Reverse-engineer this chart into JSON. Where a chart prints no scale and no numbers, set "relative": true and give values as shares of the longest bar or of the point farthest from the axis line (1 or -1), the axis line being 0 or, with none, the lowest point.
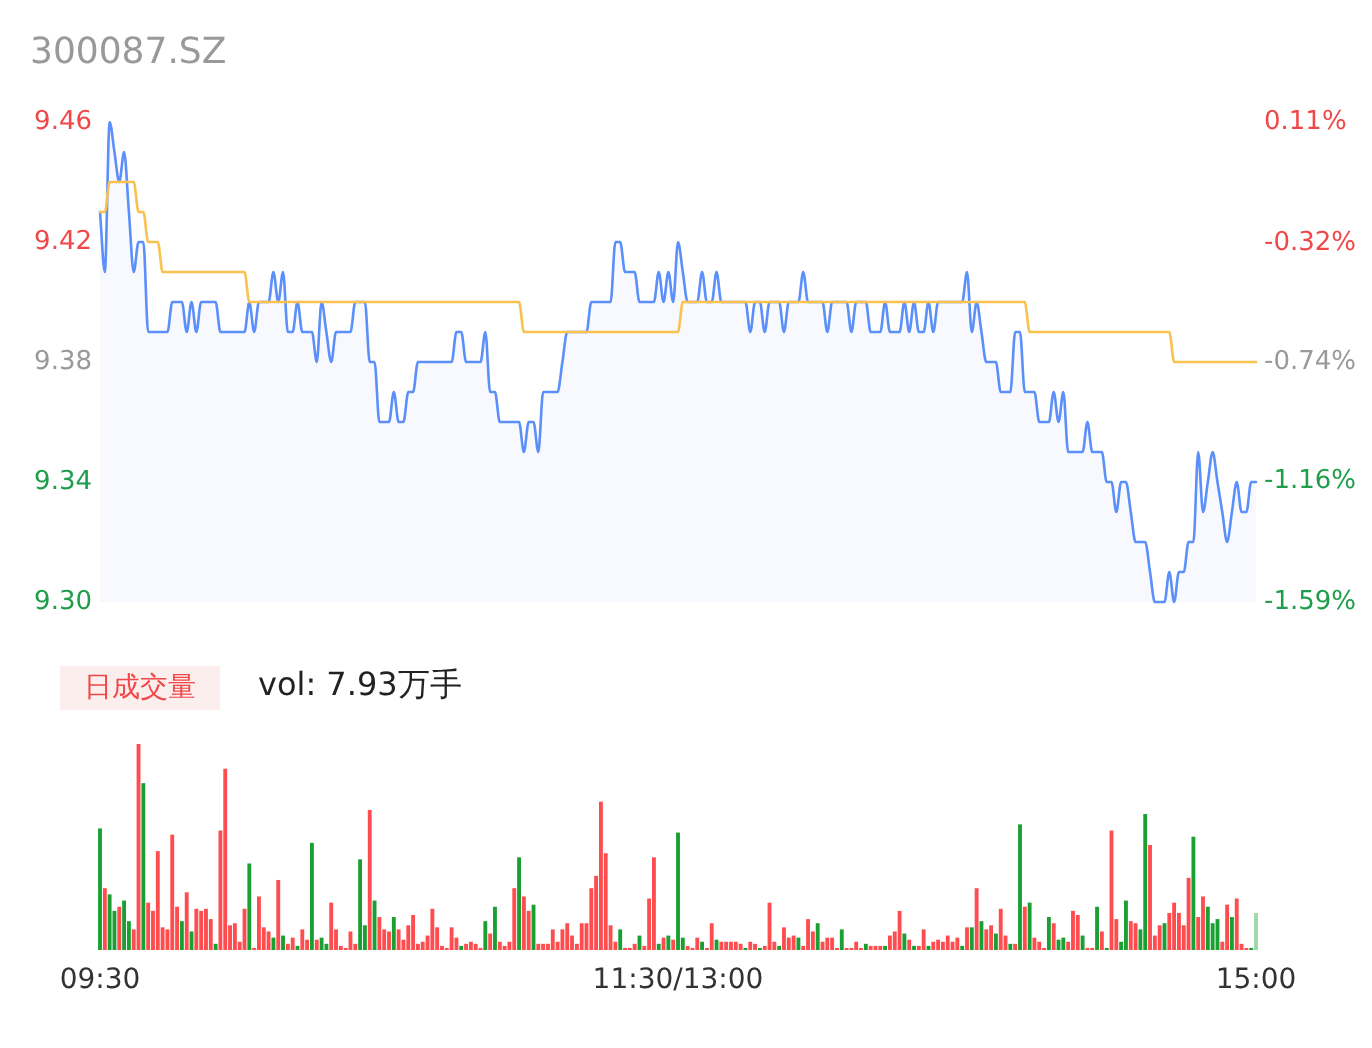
{
  "chart_data": [
    {
      "type": "area",
      "title": "300087.SZ",
      "ylim": [
        9.3,
        9.46
      ],
      "yticks": [
        {
          "value": 9.3,
          "label": "9.30"
        },
        9.34,
        9.38,
        9.42,
        9.46
      ],
      "y2lim": [
        -1.59,
        0.11
      ],
      "y2ticks": [
        {
          "value": -1.59,
          "label": "-1.59%"
        },
        {
          "value": -1.16,
          "label": "-1.16%"
        },
        {
          "value": -0.74,
          "label": "-0.74%"
        },
        {
          "value": -0.32,
          "label": "-0.32%"
        },
        {
          "value": 0.11,
          "label": "0.11%"
        }
      ],
      "tick_labels": "y",
      "categories": [
        null,
        null,
        null,
        null,
        null,
        null,
        null,
        null,
        null,
        null,
        null,
        null,
        null,
        null,
        null,
        null,
        null,
        null,
        null,
        null,
        null,
        null,
        null,
        null,
        null,
        null,
        null,
        null,
        null,
        null,
        null,
        null,
        null,
        null,
        null,
        null,
        null,
        null,
        null,
        null,
        null,
        null,
        null,
        null,
        null,
        null,
        null,
        null,
        null,
        null,
        null,
        null,
        null,
        null,
        null,
        null,
        null,
        null,
        null,
        null,
        null,
        null,
        null,
        null,
        null,
        null,
        null,
        null,
        null,
        null,
        null,
        null,
        null,
        null,
        null,
        null,
        null,
        null,
        null,
        null,
        null,
        null,
        null,
        null,
        null,
        null,
        null,
        null,
        null,
        null,
        null,
        null,
        null,
        null,
        null,
        null,
        null,
        null,
        null,
        null,
        null,
        null,
        null,
        null,
        null,
        null,
        null,
        null,
        null,
        null,
        null,
        null,
        null,
        null,
        null,
        null,
        null,
        null,
        null,
        null,
        null,
        null,
        null,
        null,
        null,
        null,
        null,
        null,
        null,
        null,
        null,
        null,
        null,
        null,
        null,
        null,
        null,
        null,
        null,
        null,
        null,
        null,
        null,
        null,
        null,
        null,
        null,
        null,
        null,
        null,
        null,
        null,
        null,
        null,
        null,
        null,
        null,
        null,
        null,
        null,
        null,
        null,
        null,
        null,
        null,
        null,
        null,
        null,
        null,
        null,
        null,
        null,
        null,
        null,
        null,
        null,
        null,
        null,
        null,
        null,
        null,
        null,
        null,
        null,
        null,
        null,
        null,
        null,
        null,
        null,
        null,
        null,
        null,
        null,
        null,
        null,
        null,
        null,
        null,
        null,
        null,
        null,
        null,
        null,
        null,
        null,
        null,
        null,
        null,
        null,
        null,
        null,
        null,
        null,
        null,
        null,
        null,
        null,
        null,
        null,
        null,
        null,
        null,
        null,
        null,
        null,
        null,
        null,
        null,
        null,
        null,
        null,
        null,
        null,
        null,
        null,
        null,
        null,
        null,
        null,
        null
      ],
      "series": [
        {
          "color": "#5b8ff9",
          "values": [
            9.43,
            9.41,
            9.46,
            9.45,
            9.44,
            9.45,
            9.43,
            9.41,
            9.42,
            9.42,
            9.39,
            9.39,
            9.39,
            9.39,
            9.39,
            9.4,
            9.4,
            9.4,
            9.39,
            9.4,
            9.39,
            9.4,
            9.4,
            9.4,
            9.4,
            9.39,
            9.39,
            9.39,
            9.39,
            9.39,
            9.39,
            9.4,
            9.39,
            9.4,
            9.4,
            9.4,
            9.41,
            9.4,
            9.41,
            9.39,
            9.39,
            9.4,
            9.39,
            9.39,
            9.39,
            9.38,
            9.4,
            9.39,
            9.38,
            9.39,
            9.39,
            9.39,
            9.39,
            9.4,
            9.4,
            9.4,
            9.38,
            9.38,
            9.36,
            9.36,
            9.36,
            9.37,
            9.36,
            9.36,
            9.37,
            9.37,
            9.38,
            9.38,
            9.38,
            9.38,
            9.38,
            9.38,
            9.38,
            9.38,
            9.39,
            9.39,
            9.38,
            9.38,
            9.38,
            9.38,
            9.39,
            9.37,
            9.37,
            9.36,
            9.36,
            9.36,
            9.36,
            9.36,
            9.35,
            9.36,
            9.36,
            9.35,
            9.37,
            9.37,
            9.37,
            9.37,
            9.38,
            9.39,
            9.39,
            9.39,
            9.39,
            9.39,
            9.4,
            9.4,
            9.4,
            9.4,
            9.4,
            9.42,
            9.42,
            9.41,
            9.41,
            9.41,
            9.4,
            9.4,
            9.4,
            9.4,
            9.41,
            9.4,
            9.41,
            9.4,
            9.42,
            9.41,
            9.4,
            9.4,
            9.4,
            9.41,
            9.4,
            9.4,
            9.41,
            9.4,
            9.4,
            9.4,
            9.4,
            9.4,
            9.4,
            9.39,
            9.4,
            9.4,
            9.39,
            9.4,
            9.4,
            9.4,
            9.39,
            9.4,
            9.4,
            9.4,
            9.41,
            9.4,
            9.4,
            9.4,
            9.4,
            9.39,
            9.4,
            9.4,
            9.4,
            9.4,
            9.39,
            9.4,
            9.4,
            9.4,
            9.39,
            9.39,
            9.39,
            9.4,
            9.39,
            9.39,
            9.39,
            9.4,
            9.39,
            9.4,
            9.39,
            9.39,
            9.4,
            9.39,
            9.4,
            9.4,
            9.4,
            9.4,
            9.4,
            9.4,
            9.41,
            9.39,
            9.4,
            9.39,
            9.38,
            9.38,
            9.38,
            9.37,
            9.37,
            9.37,
            9.39,
            9.39,
            9.37,
            9.37,
            9.37,
            9.36,
            9.36,
            9.36,
            9.37,
            9.36,
            9.37,
            9.35,
            9.35,
            9.35,
            9.35,
            9.36,
            9.35,
            9.35,
            9.35,
            9.34,
            9.34,
            9.33,
            9.34,
            9.34,
            9.33,
            9.32,
            9.32,
            9.32,
            9.31,
            9.3,
            9.3,
            9.3,
            9.31,
            9.3,
            9.31,
            9.31,
            9.32,
            9.32,
            9.35,
            9.33,
            9.34,
            9.35,
            9.34,
            9.33,
            9.32,
            9.33,
            9.34,
            9.33,
            9.33,
            9.34,
            9.34
          ]
        },
        {
          "type": "line",
          "color": "#f9c24f",
          "values": [
            9.43,
            9.43,
            9.44,
            9.44,
            9.44,
            9.44,
            9.44,
            9.44,
            9.43,
            9.43,
            9.42,
            9.42,
            9.42,
            9.41,
            9.41,
            9.41,
            9.41,
            9.41,
            9.41,
            9.41,
            9.41,
            9.41,
            9.41,
            9.41,
            9.41,
            9.41,
            9.41,
            9.41,
            9.41,
            9.41,
            9.41,
            9.4,
            9.4,
            9.4,
            9.4,
            9.4,
            9.4,
            9.4,
            9.4,
            9.4,
            9.4,
            9.4,
            9.4,
            9.4,
            9.4,
            9.4,
            9.4,
            9.4,
            9.4,
            9.4,
            9.4,
            9.4,
            9.4,
            9.4,
            9.4,
            9.4,
            9.4,
            9.4,
            9.4,
            9.4,
            9.4,
            9.4,
            9.4,
            9.4,
            9.4,
            9.4,
            9.4,
            9.4,
            9.4,
            9.4,
            9.4,
            9.4,
            9.4,
            9.4,
            9.4,
            9.4,
            9.4,
            9.4,
            9.4,
            9.4,
            9.4,
            9.4,
            9.4,
            9.4,
            9.4,
            9.4,
            9.4,
            9.4,
            9.39,
            9.39,
            9.39,
            9.39,
            9.39,
            9.39,
            9.39,
            9.39,
            9.39,
            9.39,
            9.39,
            9.39,
            9.39,
            9.39,
            9.39,
            9.39,
            9.39,
            9.39,
            9.39,
            9.39,
            9.39,
            9.39,
            9.39,
            9.39,
            9.39,
            9.39,
            9.39,
            9.39,
            9.39,
            9.39,
            9.39,
            9.39,
            9.39,
            9.4,
            9.4,
            9.4,
            9.4,
            9.4,
            9.4,
            9.4,
            9.4,
            9.4,
            9.4,
            9.4,
            9.4,
            9.4,
            9.4,
            9.4,
            9.4,
            9.4,
            9.4,
            9.4,
            9.4,
            9.4,
            9.4,
            9.4,
            9.4,
            9.4,
            9.4,
            9.4,
            9.4,
            9.4,
            9.4,
            9.4,
            9.4,
            9.4,
            9.4,
            9.4,
            9.4,
            9.4,
            9.4,
            9.4,
            9.4,
            9.4,
            9.4,
            9.4,
            9.4,
            9.4,
            9.4,
            9.4,
            9.4,
            9.4,
            9.4,
            9.4,
            9.4,
            9.4,
            9.4,
            9.4,
            9.4,
            9.4,
            9.4,
            9.4,
            9.4,
            9.4,
            9.4,
            9.4,
            9.4,
            9.4,
            9.4,
            9.4,
            9.4,
            9.4,
            9.4,
            9.4,
            9.4,
            9.39,
            9.39,
            9.39,
            9.39,
            9.39,
            9.39,
            9.39,
            9.39,
            9.39,
            9.39,
            9.39,
            9.39,
            9.39,
            9.39,
            9.39,
            9.39,
            9.39,
            9.39,
            9.39,
            9.39,
            9.39,
            9.39,
            9.39,
            9.39,
            9.39,
            9.39,
            9.39,
            9.39,
            9.39,
            9.39,
            9.38,
            9.38,
            9.38,
            9.38,
            9.38,
            9.38,
            9.38,
            9.38,
            9.38,
            9.38,
            9.38,
            9.38,
            9.38,
            9.38,
            9.38,
            9.38,
            9.38,
            9.38
          ]
        }
      ]
    },
    {
      "type": "bar",
      "title": "日成交量",
      "annotations": [
        "vol: 7.93万手"
      ],
      "relative": true,
      "tick_labels": "x",
      "categories": [
        "09:30",
        null,
        null,
        null,
        null,
        null,
        null,
        null,
        null,
        null,
        null,
        null,
        null,
        null,
        null,
        null,
        null,
        null,
        null,
        null,
        null,
        null,
        null,
        null,
        null,
        null,
        null,
        null,
        null,
        null,
        null,
        null,
        null,
        null,
        null,
        null,
        null,
        null,
        null,
        null,
        null,
        null,
        null,
        null,
        null,
        null,
        null,
        null,
        null,
        null,
        null,
        null,
        null,
        null,
        null,
        null,
        null,
        null,
        null,
        null,
        null,
        null,
        null,
        null,
        null,
        null,
        null,
        null,
        null,
        null,
        null,
        null,
        null,
        null,
        null,
        null,
        null,
        null,
        null,
        null,
        null,
        null,
        null,
        null,
        null,
        null,
        null,
        null,
        null,
        null,
        null,
        null,
        null,
        null,
        null,
        null,
        null,
        null,
        null,
        null,
        null,
        null,
        null,
        null,
        null,
        null,
        null,
        null,
        null,
        null,
        null,
        null,
        null,
        null,
        null,
        null,
        null,
        null,
        null,
        null,
        "11:30/13:00",
        null,
        null,
        null,
        null,
        null,
        null,
        null,
        null,
        null,
        null,
        null,
        null,
        null,
        null,
        null,
        null,
        null,
        null,
        null,
        null,
        null,
        null,
        null,
        null,
        null,
        null,
        null,
        null,
        null,
        null,
        null,
        null,
        null,
        null,
        null,
        null,
        null,
        null,
        null,
        null,
        null,
        null,
        null,
        null,
        null,
        null,
        null,
        null,
        null,
        null,
        null,
        null,
        null,
        null,
        null,
        null,
        null,
        null,
        null,
        null,
        null,
        null,
        null,
        null,
        null,
        null,
        null,
        null,
        null,
        null,
        null,
        null,
        null,
        null,
        null,
        null,
        null,
        null,
        null,
        null,
        null,
        null,
        null,
        null,
        null,
        null,
        null,
        null,
        null,
        null,
        null,
        null,
        null,
        null,
        null,
        null,
        null,
        null,
        null,
        null,
        null,
        null,
        null,
        null,
        null,
        null,
        null,
        null,
        null,
        null,
        null,
        null,
        null,
        null,
        null,
        null,
        null,
        null,
        null,
        "15:00"
      ],
      "values": [
        0.59,
        0.3,
        0.27,
        0.19,
        0.21,
        0.24,
        0.14,
        0.1,
        1,
        0.81,
        0.23,
        0.19,
        0.48,
        0.11,
        0.1,
        0.56,
        0.21,
        0.14,
        0.28,
        0.09,
        0.2,
        0.19,
        0.2,
        0.15,
        0.03,
        0.58,
        0.88,
        0.12,
        0.13,
        0.04,
        0.2,
        0.42,
        0.01,
        0.26,
        0.11,
        0.09,
        0.06,
        0.34,
        0.07,
        0.03,
        0.06,
        0.02,
        0.1,
        0.05,
        0.52,
        0.05,
        0.06,
        0.03,
        0.23,
        0.1,
        0.02,
        0.01,
        0.09,
        0.03,
        0.44,
        0.12,
        0.68,
        0.24,
        0.16,
        0.1,
        0.09,
        0.16,
        0.1,
        0.05,
        0.12,
        0.17,
        0.03,
        0.04,
        0.07,
        0.2,
        0.11,
        0.02,
        0.01,
        0.11,
        0.06,
        0.02,
        0.03,
        0.04,
        0.03,
        0.01,
        0.14,
        0.08,
        0.21,
        0.04,
        0.02,
        0.04,
        0.3,
        0.45,
        0.26,
        0.19,
        0.22,
        0.03,
        0.03,
        0.03,
        0.1,
        0.04,
        0.1,
        0.13,
        0.07,
        0.03,
        0.13,
        0.13,
        0.3,
        0.36,
        0.72,
        0.47,
        0.12,
        0.04,
        0.1,
        0.01,
        0.01,
        0.03,
        0.07,
        0.02,
        0.25,
        0.45,
        0.03,
        0.06,
        0.07,
        0.05,
        0.57,
        0.06,
        0.02,
        0.01,
        0.06,
        0.04,
        0.01,
        0.13,
        0.05,
        0.04,
        0.04,
        0.04,
        0.04,
        0.03,
        0.01,
        0.04,
        0.03,
        0.01,
        0.02,
        0.23,
        0.04,
        0.02,
        0.11,
        0.06,
        0.07,
        0.06,
        0.02,
        0.15,
        0.09,
        0.13,
        0.04,
        0.06,
        0.06,
        0.01,
        0.1,
        0.01,
        0.01,
        0.04,
        0.01,
        0.03,
        0.02,
        0.02,
        0.02,
        0.02,
        0.07,
        0.09,
        0.19,
        0.08,
        0.05,
        0.02,
        0.02,
        0.1,
        0.02,
        0.04,
        0.05,
        0.04,
        0.07,
        0.04,
        0.06,
        0.02,
        0.11,
        0.11,
        0.3,
        0.14,
        0.1,
        0.12,
        0.08,
        0.2,
        0.07,
        0.03,
        0.03,
        0.61,
        0.21,
        0.23,
        0.06,
        0.04,
        0.01,
        0.16,
        0.13,
        0.05,
        0.06,
        0.04,
        0.19,
        0.17,
        0.07,
        0.01,
        0.01,
        0.21,
        0.09,
        0.01,
        0.58,
        0.15,
        0.04,
        0.24,
        0.14,
        0.13,
        0.1,
        0.66,
        0.51,
        0.07,
        0.12,
        0.13,
        0.18,
        0.23,
        0.18,
        0.12,
        0.35,
        0.55,
        0.16,
        0.26,
        0.21,
        0.13,
        0.15,
        0.04,
        0.22,
        0.16,
        0.25,
        0.03,
        0.01,
        0.01,
        0.18
      ],
      "colors": [
        "#1aa032",
        "#ff4d4f",
        "#1aa032",
        "#1aa032",
        "#ff4d4f",
        "#1aa032",
        "#1aa032",
        "#ff4d4f",
        "#ff4d4f",
        "#1aa032",
        "#ff4d4f",
        "#ff4d4f",
        "#ff4d4f",
        "#ff4d4f",
        "#ff4d4f",
        "#ff4d4f",
        "#ff4d4f",
        "#1aa032",
        "#ff4d4f",
        "#1aa032",
        "#ff4d4f",
        "#ff4d4f",
        "#ff4d4f",
        "#ff4d4f",
        "#1aa032",
        "#ff4d4f",
        "#ff4d4f",
        "#ff4d4f",
        "#ff4d4f",
        "#ff4d4f",
        "#ff4d4f",
        "#1aa032",
        "#ff4d4f",
        "#ff4d4f",
        "#ff4d4f",
        "#ff4d4f",
        "#1aa032",
        "#ff4d4f",
        "#1aa032",
        "#ff4d4f",
        "#ff4d4f",
        "#1aa032",
        "#ff4d4f",
        "#ff4d4f",
        "#1aa032",
        "#ff4d4f",
        "#1aa032",
        "#1aa032",
        "#ff4d4f",
        "#ff4d4f",
        "#ff4d4f",
        "#ff4d4f",
        "#ff4d4f",
        "#ff4d4f",
        "#1aa032",
        "#1aa032",
        "#ff4d4f",
        "#1aa032",
        "#ff4d4f",
        "#ff4d4f",
        "#ff4d4f",
        "#1aa032",
        "#ff4d4f",
        "#ff4d4f",
        "#ff4d4f",
        "#ff4d4f",
        "#ff4d4f",
        "#ff4d4f",
        "#ff4d4f",
        "#ff4d4f",
        "#ff4d4f",
        "#ff4d4f",
        "#ff4d4f",
        "#ff4d4f",
        "#ff4d4f",
        "#1aa032",
        "#ff4d4f",
        "#ff4d4f",
        "#ff4d4f",
        "#ff4d4f",
        "#1aa032",
        "#ff4d4f",
        "#1aa032",
        "#ff4d4f",
        "#ff4d4f",
        "#ff4d4f",
        "#ff4d4f",
        "#1aa032",
        "#ff4d4f",
        "#ff4d4f",
        "#1aa032",
        "#ff4d4f",
        "#ff4d4f",
        "#ff4d4f",
        "#ff4d4f",
        "#ff4d4f",
        "#ff4d4f",
        "#ff4d4f",
        "#ff4d4f",
        "#ff4d4f",
        "#ff4d4f",
        "#ff4d4f",
        "#ff4d4f",
        "#ff4d4f",
        "#ff4d4f",
        "#ff4d4f",
        "#ff4d4f",
        "#ff4d4f",
        "#1aa032",
        "#ff4d4f",
        "#ff4d4f",
        "#ff4d4f",
        "#1aa032",
        "#ff4d4f",
        "#ff4d4f",
        "#ff4d4f",
        "#1aa032",
        "#ff4d4f",
        "#1aa032",
        "#ff4d4f",
        "#1aa032",
        "#1aa032",
        "#ff4d4f",
        "#ff4d4f",
        "#ff4d4f",
        "#1aa032",
        "#ff4d4f",
        "#ff4d4f",
        "#1aa032",
        "#ff4d4f",
        "#ff4d4f",
        "#ff4d4f",
        "#ff4d4f",
        "#ff4d4f",
        "#1aa032",
        "#ff4d4f",
        "#ff4d4f",
        "#1aa032",
        "#ff4d4f",
        "#ff4d4f",
        "#ff4d4f",
        "#1aa032",
        "#ff4d4f",
        "#ff4d4f",
        "#ff4d4f",
        "#1aa032",
        "#ff4d4f",
        "#ff4d4f",
        "#ff4d4f",
        "#1aa032",
        "#ff4d4f",
        "#ff4d4f",
        "#ff4d4f",
        "#ff4d4f",
        "#1aa032",
        "#ff4d4f",
        "#ff4d4f",
        "#ff4d4f",
        "#ff4d4f",
        "#1aa032",
        "#ff4d4f",
        "#ff4d4f",
        "#ff4d4f",
        "#1aa032",
        "#ff4d4f",
        "#ff4d4f",
        "#ff4d4f",
        "#1aa032",
        "#ff4d4f",
        "#1aa032",
        "#ff4d4f",
        "#ff4d4f",
        "#1aa032",
        "#ff4d4f",
        "#ff4d4f",
        "#ff4d4f",
        "#ff4d4f",
        "#ff4d4f",
        "#ff4d4f",
        "#1aa032",
        "#ff4d4f",
        "#1aa032",
        "#ff4d4f",
        "#1aa032",
        "#ff4d4f",
        "#ff4d4f",
        "#1aa032",
        "#ff4d4f",
        "#ff4d4f",
        "#1aa032",
        "#ff4d4f",
        "#1aa032",
        "#ff4d4f",
        "#1aa032",
        "#ff4d4f",
        "#ff4d4f",
        "#ff4d4f",
        "#1aa032",
        "#ff4d4f",
        "#1aa032",
        "#1aa032",
        "#ff4d4f",
        "#ff4d4f",
        "#ff4d4f",
        "#1aa032",
        "#ff4d4f",
        "#ff4d4f",
        "#1aa032",
        "#ff4d4f",
        "#1aa032",
        "#ff4d4f",
        "#ff4d4f",
        "#1aa032",
        "#1aa032",
        "#ff4d4f",
        "#ff4d4f",
        "#1aa032",
        "#1aa032",
        "#ff4d4f",
        "#ff4d4f",
        "#ff4d4f",
        "#1aa032",
        "#ff4d4f",
        "#ff4d4f",
        "#ff4d4f",
        "#ff4d4f",
        "#ff4d4f",
        "#1aa032",
        "#ff4d4f",
        "#ff4d4f",
        "#1aa032",
        "#1aa032",
        "#1aa032",
        "#ff4d4f",
        "#ff4d4f",
        "#1aa032",
        "#ff4d4f",
        "#ff4d4f",
        "#ff4d4f",
        "#1aa032",
        "#9ed8a8"
      ]
    }
  ]
}
